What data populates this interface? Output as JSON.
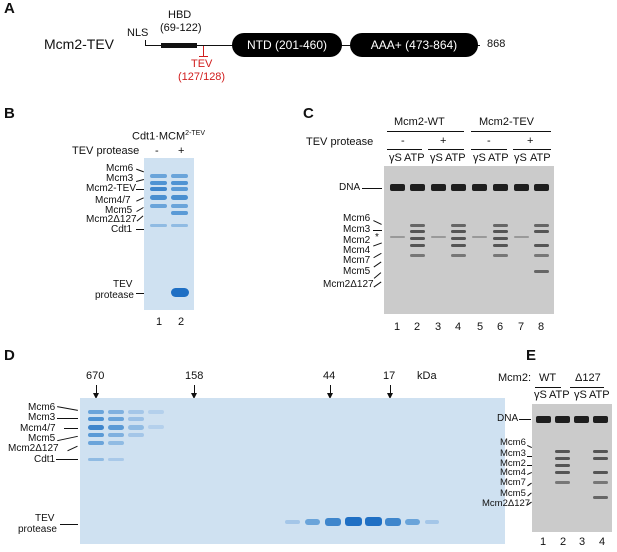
{
  "panelA": {
    "letter": "A",
    "construct": "Mcm2-TEV",
    "nls": "NLS",
    "hbd_title": "HBD",
    "hbd_range": "(69-122)",
    "tev_title": "TEV",
    "tev_range": "(127/128)",
    "ntd": "NTD (201-460)",
    "aaa": "AAA+ (473-864)",
    "end": "868",
    "colors": {
      "tev": "#d11d1d",
      "domain": "#000000"
    }
  },
  "panelB": {
    "letter": "B",
    "title_base": "Cdt1·MCM",
    "title_sup": "2-TEV",
    "tev_label": "TEV protease",
    "tev_signs": [
      "-",
      "+"
    ],
    "bands": [
      "Mcm6",
      "Mcm3",
      "Mcm2-TEV",
      "Mcm4/7",
      "Mcm5",
      "Mcm2Δ127",
      "Cdt1"
    ],
    "bottom_band_line1": "TEV",
    "bottom_band_line2": "protease",
    "lanes": [
      "1",
      "2"
    ]
  },
  "panelC": {
    "letter": "C",
    "group1": "Mcm2-WT",
    "group2": "Mcm2-TEV",
    "tev_label": "TEV protease",
    "signs": [
      "-",
      "+",
      "-",
      "+"
    ],
    "nucleotides": [
      "γS",
      "ATP",
      "γS",
      "ATP",
      "γS",
      "ATP",
      "γS",
      "ATP"
    ],
    "dna": "DNA",
    "bands": [
      "Mcm6",
      "Mcm3",
      "Mcm2",
      "Mcm4",
      "Mcm7",
      "Mcm5",
      "Mcm2Δ127"
    ],
    "asterisk": "*",
    "lanes": [
      "1",
      "2",
      "3",
      "4",
      "5",
      "6",
      "7",
      "8"
    ]
  },
  "panelD": {
    "letter": "D",
    "markers": [
      "670",
      "158",
      "44",
      "17"
    ],
    "unit": "kDa",
    "bands": [
      "Mcm6",
      "Mcm3",
      "Mcm4/7",
      "Mcm5",
      "Mcm2Δ127",
      "Cdt1"
    ],
    "bottom_band_line1": "TEV",
    "bottom_band_line2": "protease"
  },
  "panelE": {
    "letter": "E",
    "label": "Mcm2:",
    "wt": "WT",
    "del": "Δ127",
    "nucleotides": [
      "γS",
      "ATP",
      "γS",
      "ATP"
    ],
    "dna": "DNA",
    "bands": [
      "Mcm6",
      "Mcm3",
      "Mcm2",
      "Mcm4",
      "Mcm7",
      "Mcm5",
      "Mcm2Δ127"
    ],
    "lanes": [
      "1",
      "2",
      "3",
      "4"
    ]
  }
}
